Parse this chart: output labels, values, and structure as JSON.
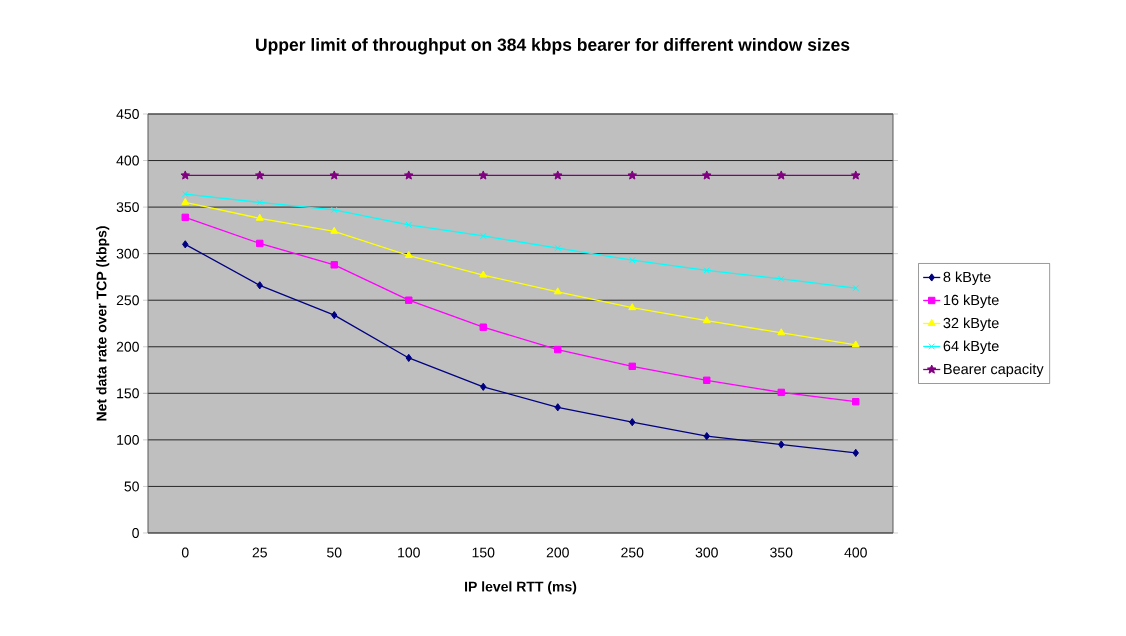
{
  "chart_data": {
    "type": "line",
    "title": "Upper limit of throughput on 384 kbps bearer for different window sizes",
    "xlabel": "IP level RTT (ms)",
    "ylabel": "Net data rate over TCP (kbps)",
    "categories": [
      "0",
      "25",
      "50",
      "100",
      "150",
      "200",
      "250",
      "300",
      "350",
      "400"
    ],
    "series": [
      {
        "name": "8 kByte",
        "color": "#000080",
        "marker": "diamond",
        "values": [
          310,
          266,
          234,
          188,
          157,
          135,
          119,
          104,
          95,
          86
        ]
      },
      {
        "name": "16 kByte",
        "color": "#ff00ff",
        "marker": "square",
        "values": [
          339,
          311,
          288,
          250,
          221,
          197,
          179,
          164,
          151,
          141
        ]
      },
      {
        "name": "32 kByte",
        "color": "#ffff00",
        "marker": "triangle",
        "values": [
          355,
          338,
          324,
          298,
          277,
          259,
          242,
          228,
          215,
          202
        ]
      },
      {
        "name": "64 kByte",
        "color": "#00ffff",
        "marker": "cross",
        "values": [
          364,
          355,
          347,
          331,
          319,
          306,
          293,
          282,
          273,
          263
        ]
      },
      {
        "name": "Bearer capacity",
        "color": "#800080",
        "marker": "star",
        "values": [
          384,
          384,
          384,
          384,
          384,
          384,
          384,
          384,
          384,
          384
        ]
      }
    ],
    "ylim": [
      0,
      450
    ],
    "yticks": [
      0,
      50,
      100,
      150,
      200,
      250,
      300,
      350,
      400,
      450
    ],
    "grid": "y",
    "legend": "right",
    "line_style": "solid"
  }
}
